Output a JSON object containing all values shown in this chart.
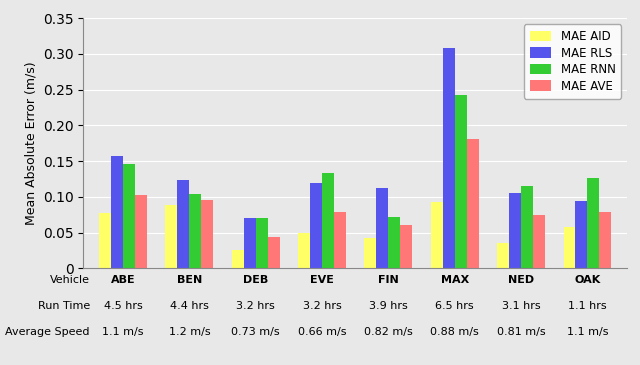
{
  "vehicles": [
    "ABE",
    "BEN",
    "DEB",
    "EVE",
    "FIN",
    "MAX",
    "NED",
    "OAK"
  ],
  "run_times": [
    "4.5 hrs",
    "4.4 hrs",
    "3.2 hrs",
    "3.2 hrs",
    "3.9 hrs",
    "6.5 hrs",
    "3.1 hrs",
    "1.1 hrs"
  ],
  "avg_speeds": [
    "1.1 m/s",
    "1.2 m/s",
    "0.73 m/s",
    "0.66 m/s",
    "0.82 m/s",
    "0.88 m/s",
    "0.81 m/s",
    "1.1 m/s"
  ],
  "mae_aid": [
    0.078,
    0.088,
    0.025,
    0.05,
    0.043,
    0.093,
    0.036,
    0.058
  ],
  "mae_rls": [
    0.157,
    0.124,
    0.07,
    0.119,
    0.112,
    0.308,
    0.105,
    0.094
  ],
  "mae_rnn": [
    0.146,
    0.104,
    0.07,
    0.134,
    0.072,
    0.242,
    0.115,
    0.127
  ],
  "mae_ave": [
    0.103,
    0.096,
    0.044,
    0.079,
    0.061,
    0.181,
    0.075,
    0.079
  ],
  "colors": {
    "aid": "#FFFF66",
    "rls": "#5555EE",
    "rnn": "#33CC33",
    "ave": "#FF7777"
  },
  "bg_color": "#E8E8E8",
  "ylabel": "Mean Absolute Error (m/s)",
  "ylim": [
    0,
    0.35
  ],
  "yticks": [
    0,
    0.05,
    0.1,
    0.15,
    0.2,
    0.25,
    0.3,
    0.35
  ],
  "legend_labels": [
    "MAE AID",
    "MAE RLS",
    "MAE RNN",
    "MAE AVE"
  ],
  "bar_width": 0.18,
  "left_labels": [
    "Vehicle",
    "Run Time",
    "Average Speed"
  ]
}
